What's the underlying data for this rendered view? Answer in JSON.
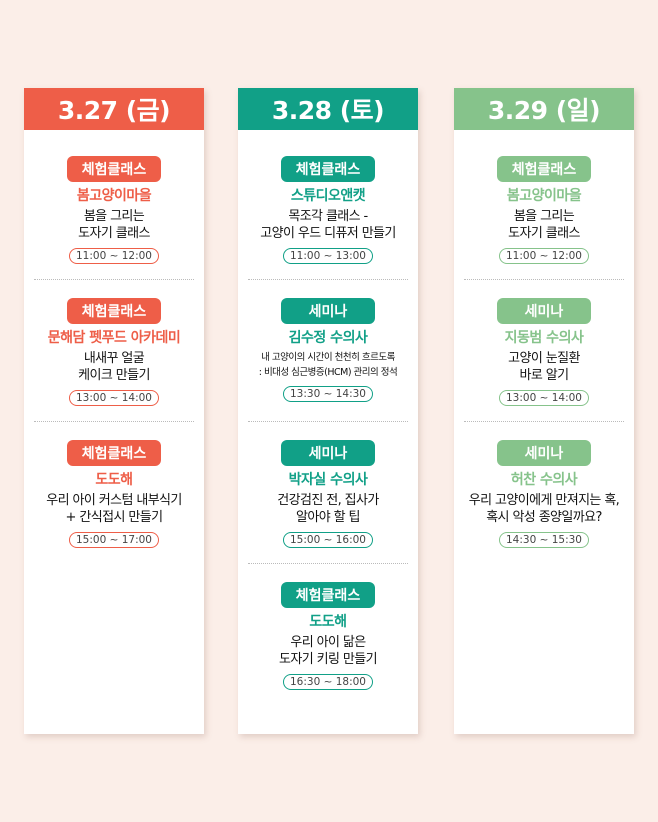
{
  "colors": {
    "fri": "#ee5e48",
    "sat": "#11a087",
    "sun": "#86c38b",
    "background": "#fbeee8"
  },
  "days": [
    {
      "date": "3.27 (금)",
      "events": [
        {
          "badge": "체험클래스",
          "title": "봄고양이마을",
          "desc": "봄을 그리는\n도자기 클래스",
          "time": "11:00 ~ 12:00"
        },
        {
          "badge": "체험클래스",
          "title": "문해담 펫푸드 아카데미",
          "desc": "내새꾸 얼굴\n케이크 만들기",
          "time": "13:00 ~ 14:00"
        },
        {
          "badge": "체험클래스",
          "title": "도도해",
          "desc": "우리 아이 커스텀 내부식기\n+ 간식접시 만들기",
          "time": "15:00 ~ 17:00"
        }
      ]
    },
    {
      "date": "3.28 (토)",
      "events": [
        {
          "badge": "체험클래스",
          "title": "스튜디오앤캣",
          "desc": "목조각 클래스 -\n고양이 우드 디퓨저 만들기",
          "time": "11:00 ~ 13:00"
        },
        {
          "badge": "세미나",
          "title": "김수정 수의사",
          "desc": "내 고양이의 시간이 천천히 흐르도록\n: 비대성 심근병증(HCM) 관리의 정석",
          "time": "13:30 ~ 14:30",
          "small": true
        },
        {
          "badge": "세미나",
          "title": "박자실 수의사",
          "desc": "건강검진 전, 집사가\n알아야 할 팁",
          "time": "15:00 ~ 16:00"
        },
        {
          "badge": "체험클래스",
          "title": "도도해",
          "desc": "우리 아이 닮은\n도자기 키링 만들기",
          "time": "16:30 ~ 18:00"
        }
      ]
    },
    {
      "date": "3.29 (일)",
      "events": [
        {
          "badge": "체험클래스",
          "title": "봄고양이마을",
          "desc": "봄을 그리는\n도자기 클래스",
          "time": "11:00 ~ 12:00"
        },
        {
          "badge": "세미나",
          "title": "지동범 수의사",
          "desc": "고양이 눈질환\n바로 알기",
          "time": "13:00 ~ 14:00"
        },
        {
          "badge": "세미나",
          "title": "허찬 수의사",
          "desc": "우리 고양이에게 만져지는 혹,\n혹시 악성 종양일까요?",
          "time": "14:30 ~ 15:30"
        }
      ]
    }
  ]
}
